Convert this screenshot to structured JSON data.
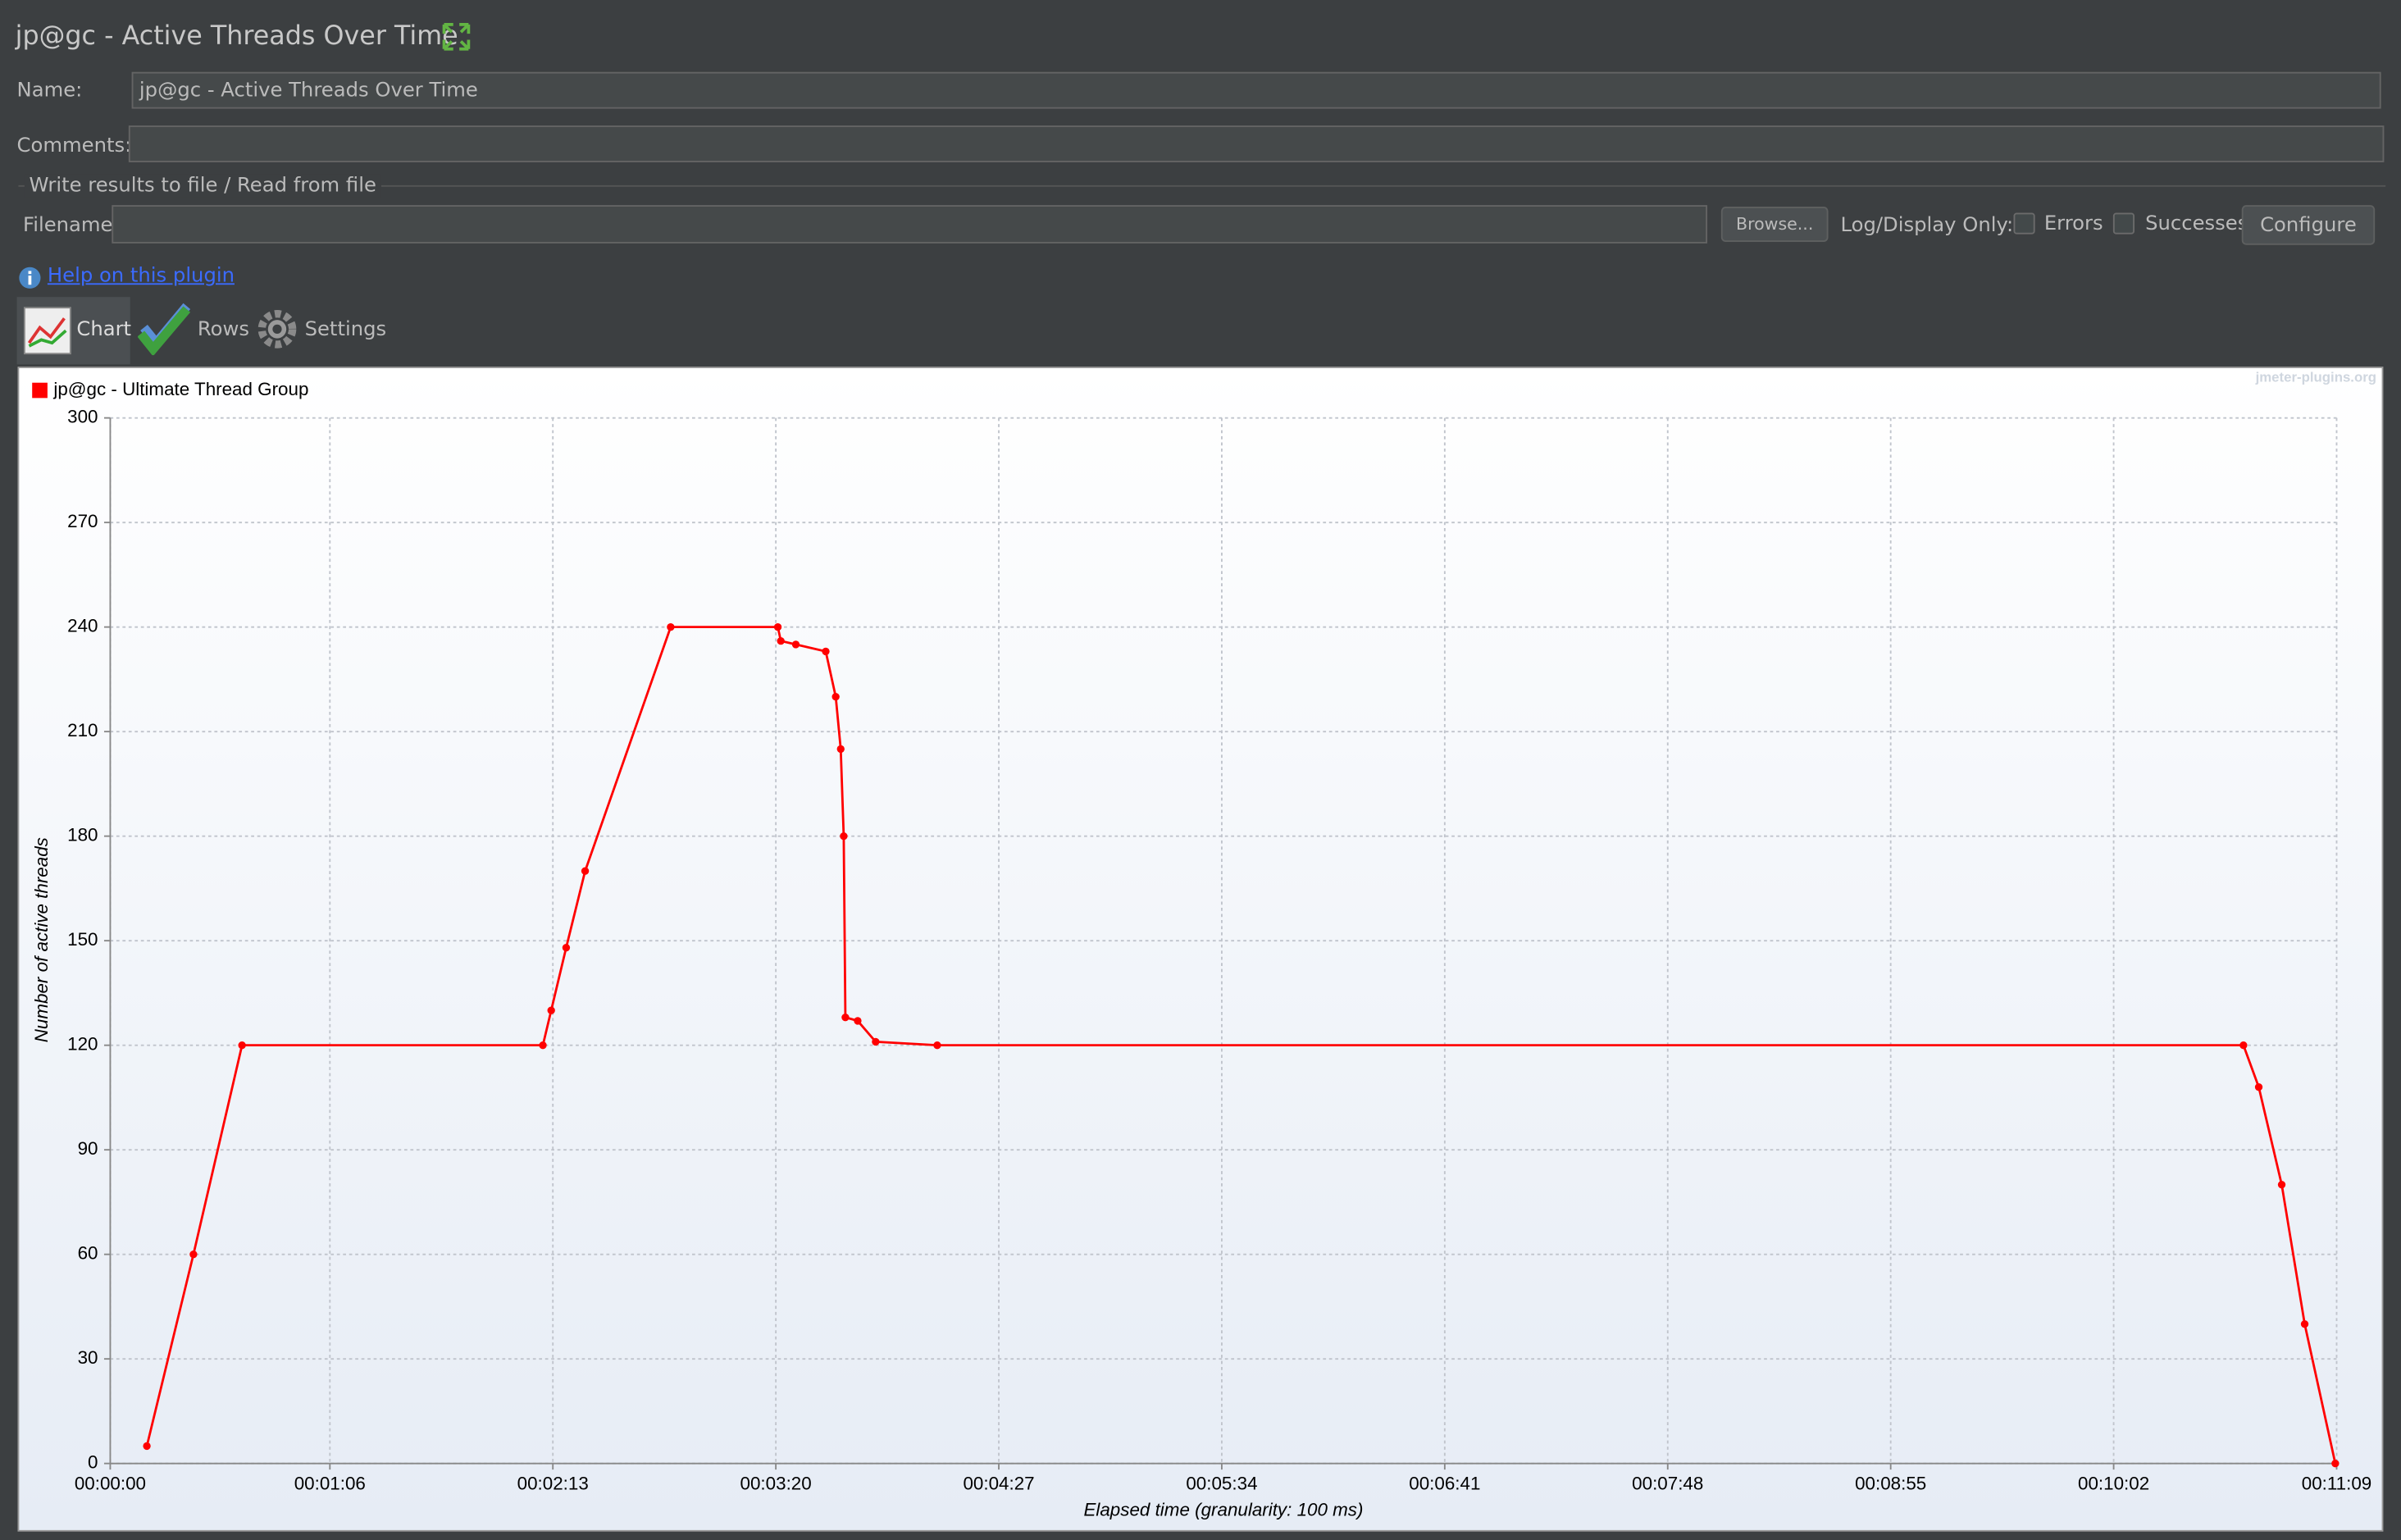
{
  "header": {
    "title": "jp@gc - Active Threads Over Time"
  },
  "form": {
    "name_label": "Name:",
    "name_value": "jp@gc - Active Threads Over Time",
    "comments_label": "Comments:",
    "file_group": "Write results to file / Read from file",
    "filename_label": "Filename",
    "browse": "Browse...",
    "log_display": "Log/Display Only:",
    "errors": "Errors",
    "successes": "Successes",
    "configure": "Configure"
  },
  "help": "Help on this plugin",
  "tabs": [
    "Chart",
    "Rows",
    "Settings"
  ],
  "watermark": "jmeter-plugins.org",
  "chart_data": {
    "type": "line",
    "y_label": "Number of active threads",
    "x_label": "Elapsed time (granularity: 100 ms)",
    "xlim": [
      0,
      669
    ],
    "xticks": [
      {
        "value": 0,
        "label": "00:00:00"
      },
      {
        "value": 66,
        "label": "00:01:06"
      },
      {
        "value": 133,
        "label": "00:02:13"
      },
      {
        "value": 200,
        "label": "00:03:20"
      },
      {
        "value": 267,
        "label": "00:04:27"
      },
      {
        "value": 334,
        "label": "00:05:34"
      },
      {
        "value": 401,
        "label": "00:06:41"
      },
      {
        "value": 468,
        "label": "00:07:48"
      },
      {
        "value": 535,
        "label": "00:08:55"
      },
      {
        "value": 602,
        "label": "00:10:02"
      },
      {
        "value": 669,
        "label": "00:11:09"
      }
    ],
    "ylim": [
      0,
      300
    ],
    "yticks": [
      0,
      30,
      60,
      90,
      120,
      150,
      180,
      210,
      240,
      270,
      300
    ],
    "grid": true,
    "series": [
      {
        "name": "jp@gc - Ultimate Thread Group",
        "color": "#ff0000",
        "x": [
          11,
          25,
          39.6,
          130,
          132.5,
          137,
          142.7,
          168.4,
          200.6,
          201.5,
          206,
          215,
          218,
          219.5,
          220.4,
          220.9,
          224.6,
          230,
          248.5,
          641,
          645.6,
          652.5,
          659.4,
          668.6
        ],
        "values": [
          5,
          60,
          120,
          120,
          130,
          148,
          170,
          240,
          240,
          236,
          235,
          233,
          220,
          205,
          180,
          128,
          127,
          121,
          120,
          120,
          108,
          80,
          40,
          0
        ]
      }
    ]
  }
}
